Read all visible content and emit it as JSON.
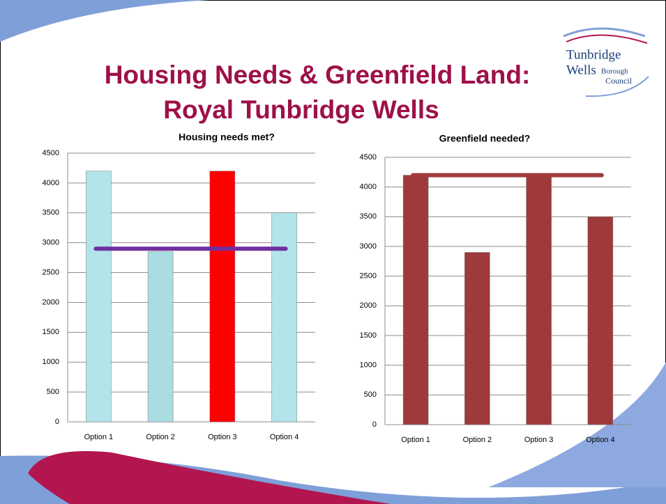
{
  "slide": {
    "title_line1": "Housing Needs & Greenfield Land:",
    "title_line2": "Royal Tunbridge Wells"
  },
  "logo": {
    "line1": "Tunbridge",
    "line2": "Wells",
    "line2_small": "Borough",
    "line3": "Council"
  },
  "chart_data": [
    {
      "type": "bar",
      "title": "Housing needs met?",
      "categories": [
        "Option 1",
        "Option 2",
        "Option 3",
        "Option 4"
      ],
      "values": [
        4200,
        2850,
        4200,
        3500
      ],
      "colors": [
        "#b3e4e9",
        "#a9dde2",
        "#ff0000",
        "#b3e4e9"
      ],
      "reference_line": {
        "value": 2900,
        "color": "#7030a0"
      },
      "ylim": [
        0,
        4500
      ],
      "yticks": [
        0,
        500,
        1000,
        1500,
        2000,
        2500,
        3000,
        3500,
        4000,
        4500
      ],
      "grid": true
    },
    {
      "type": "bar",
      "title": "Greenfield needed?",
      "categories": [
        "Option 1",
        "Option 2",
        "Option 3",
        "Option 4"
      ],
      "values": [
        4200,
        2900,
        4200,
        3500
      ],
      "colors": [
        "#9e3a3a",
        "#9e3a3a",
        "#9e3a3a",
        "#9e3a3a"
      ],
      "reference_line": {
        "value": 4200,
        "color": "#a03c3c"
      },
      "ylim": [
        0,
        4500
      ],
      "yticks": [
        0,
        500,
        1000,
        1500,
        2000,
        2500,
        3000,
        3500,
        4000,
        4500
      ],
      "grid": true
    }
  ]
}
